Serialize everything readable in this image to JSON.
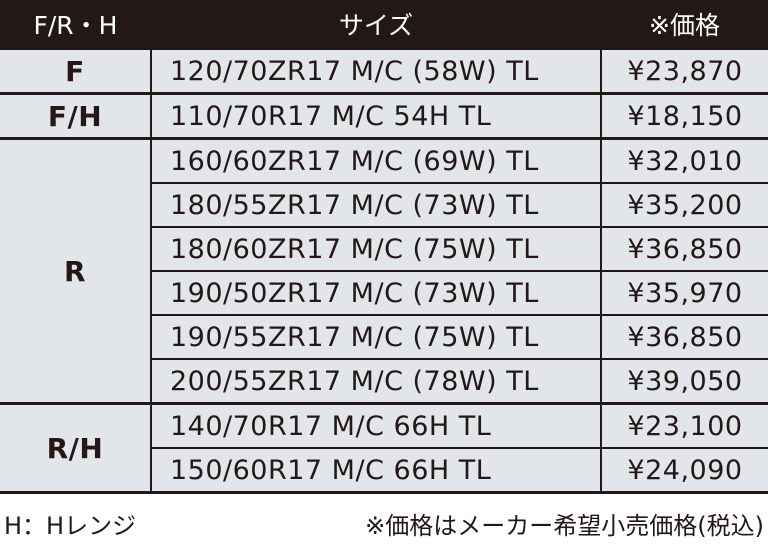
{
  "header": {
    "col1": "F/R・H",
    "col2": "サイズ",
    "col3": "※価格"
  },
  "groups": [
    {
      "label": "F",
      "rows": [
        {
          "size": "120/70ZR17 M/C (58W) TL",
          "price": "¥23,870"
        }
      ]
    },
    {
      "label": "F/H",
      "rows": [
        {
          "size": "110/70R17 M/C 54H TL",
          "price": "¥18,150"
        }
      ]
    },
    {
      "label": "R",
      "rows": [
        {
          "size": "160/60ZR17 M/C (69W) TL",
          "price": "¥32,010"
        },
        {
          "size": "180/55ZR17 M/C (73W) TL",
          "price": "¥35,200"
        },
        {
          "size": "180/60ZR17 M/C (75W) TL",
          "price": "¥36,850"
        },
        {
          "size": "190/50ZR17 M/C (73W) TL",
          "price": "¥35,970"
        },
        {
          "size": "190/55ZR17 M/C (75W) TL",
          "price": "¥36,850"
        },
        {
          "size": "200/55ZR17 M/C (78W) TL",
          "price": "¥39,050"
        }
      ]
    },
    {
      "label": "R/H",
      "rows": [
        {
          "size": "140/70R17 M/C 66H TL",
          "price": "¥23,100"
        },
        {
          "size": "150/60R17 M/C 66H TL",
          "price": "¥24,090"
        }
      ]
    }
  ],
  "footer": {
    "legend": "H：Hレンジ",
    "note": "※価格はメーカー希望小売価格(税込)"
  },
  "colors": {
    "header_bg": "#231815",
    "cell_bg": "#e2e5ea"
  }
}
